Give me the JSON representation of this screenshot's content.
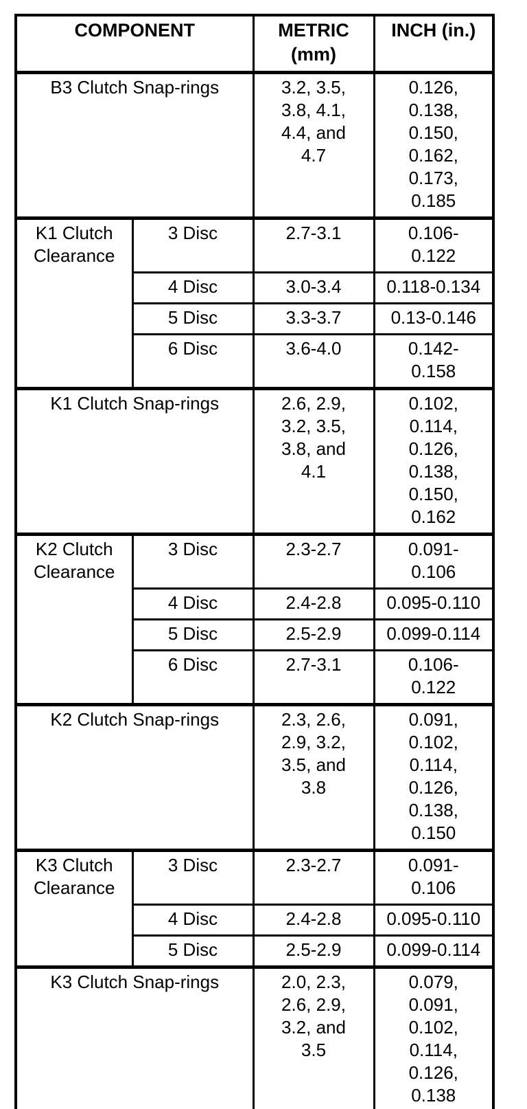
{
  "table": {
    "title_semantic": "Clutch clearance and snap-ring specification table",
    "colors": {
      "border": "#000000",
      "background": "#ffffff",
      "text": "#000000"
    },
    "header": {
      "component": "COMPONENT",
      "metric": "METRIC\n(mm)",
      "inch": "INCH (in.)"
    },
    "rows": [
      {
        "component": "B3 Clutch Snap-rings",
        "metric": "3.2, 3.5,\n3.8, 4.1,\n4.4, and\n4.7",
        "inch": "0.126,\n0.138,\n0.150,\n0.162,\n0.173,\n0.185"
      },
      {
        "component": "K1 Clutch\nClearance",
        "sub": "3 Disc",
        "metric": "2.7-3.1",
        "inch": "0.106-\n0.122"
      },
      {
        "sub": "4 Disc",
        "metric": "3.0-3.4",
        "inch": "0.118-0.134"
      },
      {
        "sub": "5 Disc",
        "metric": "3.3-3.7",
        "inch": "0.13-0.146"
      },
      {
        "sub": "6 Disc",
        "metric": "3.6-4.0",
        "inch": "0.142-\n0.158"
      },
      {
        "component": "K1 Clutch Snap-rings",
        "metric": "2.6, 2.9,\n3.2, 3.5,\n3.8, and\n4.1",
        "inch": "0.102,\n0.114,\n0.126,\n0.138,\n0.150,\n0.162"
      },
      {
        "component": "K2 Clutch\nClearance",
        "sub": "3 Disc",
        "metric": "2.3-2.7",
        "inch": "0.091-\n0.106"
      },
      {
        "sub": "4 Disc",
        "metric": "2.4-2.8",
        "inch": "0.095-0.110"
      },
      {
        "sub": "5 Disc",
        "metric": "2.5-2.9",
        "inch": "0.099-0.114"
      },
      {
        "sub": "6 Disc",
        "metric": "2.7-3.1",
        "inch": "0.106-\n0.122"
      },
      {
        "component": "K2 Clutch Snap-rings",
        "metric": "2.3, 2.6,\n2.9, 3.2,\n3.5, and\n3.8",
        "inch": "0.091,\n0.102,\n0.114,\n0.126,\n0.138,\n0.150"
      },
      {
        "component": "K3 Clutch\nClearance",
        "sub": "3 Disc",
        "metric": "2.3-2.7",
        "inch": "0.091-\n0.106"
      },
      {
        "sub": "4 Disc",
        "metric": "2.4-2.8",
        "inch": "0.095-0.110"
      },
      {
        "sub": "5 Disc",
        "metric": "2.5-2.9",
        "inch": "0.099-0.114"
      },
      {
        "component": "K3 Clutch Snap-rings",
        "metric": "2.0, 2.3,\n2.6, 2.9,\n3.2, and\n3.5",
        "inch": "0.079,\n0.091,\n0.102,\n0.114,\n0.126,\n0.138"
      }
    ]
  }
}
